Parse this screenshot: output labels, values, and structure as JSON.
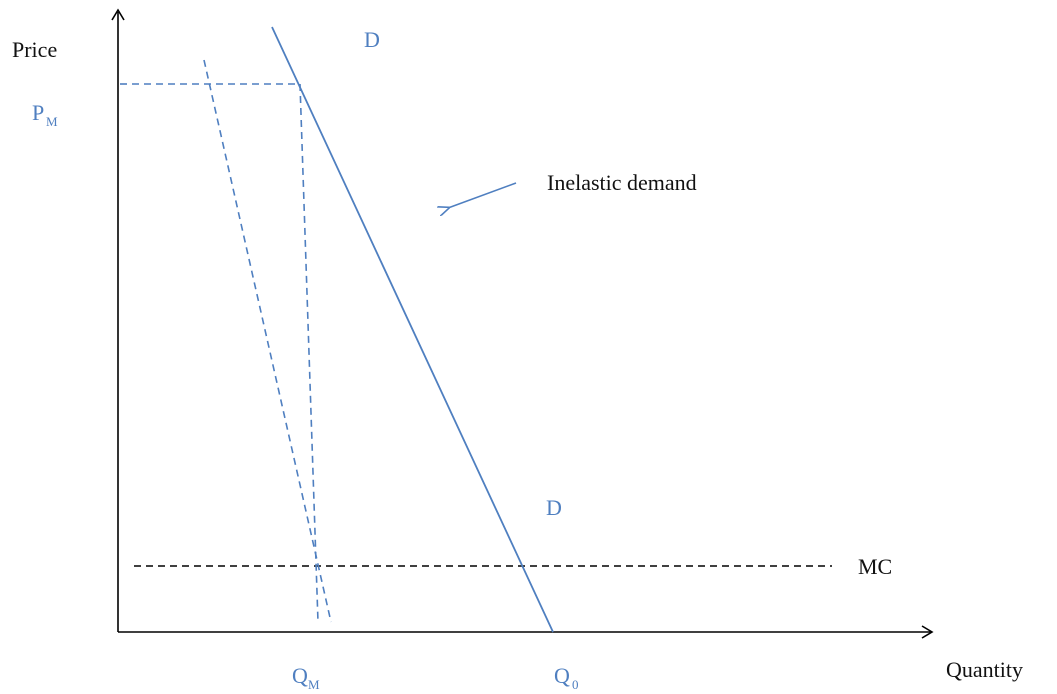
{
  "axes": {
    "y_label": "Price",
    "x_label": "Quantity"
  },
  "labels": {
    "pm_main": "P",
    "pm_sub": "M",
    "qm_main": "Q",
    "qm_sub": "M",
    "q0_main": "Q",
    "q0_sub": "0",
    "demand_top": "D",
    "demand_bottom": "D",
    "mc": "MC",
    "annotation": "Inelastic demand"
  },
  "colors": {
    "axis": "#000000",
    "demand": "#4f7fc0",
    "mc": "#000000",
    "label_blue": "#4f7fc0"
  },
  "lines": {
    "demand": "solid",
    "marginal_revenue": "dashed",
    "mc": "dashed",
    "guides": "dashed"
  }
}
